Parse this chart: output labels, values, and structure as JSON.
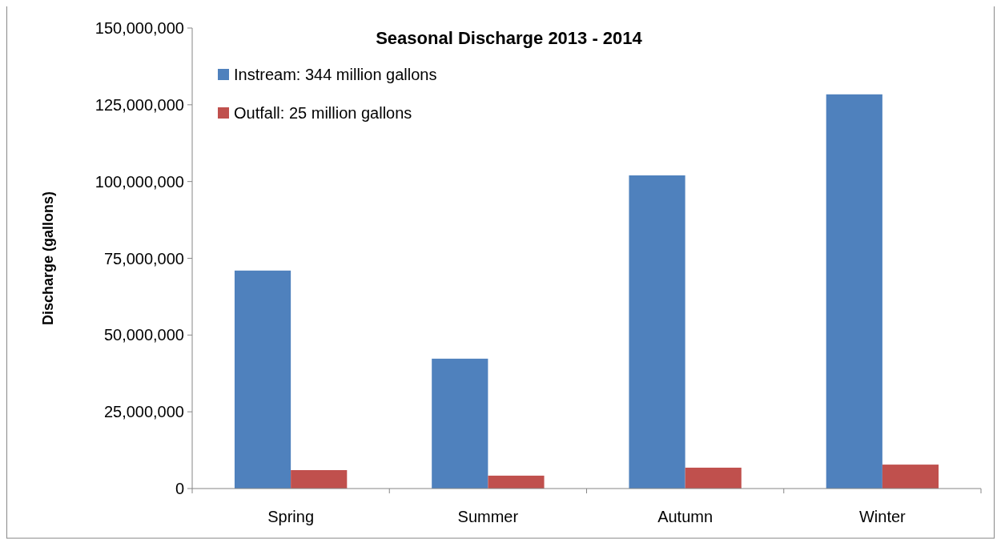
{
  "chart_data": {
    "type": "bar",
    "title": "Seasonal Discharge 2013 - 2014",
    "ylabel": "Discharge (gallons)",
    "categories": [
      "Spring",
      "Summer",
      "Autumn",
      "Winter"
    ],
    "series": [
      {
        "name": "Instream: 344 million gallons",
        "color": "#4f81bd",
        "values": [
          71000000,
          42300000,
          102000000,
          128400000
        ]
      },
      {
        "name": "Outfall: 25 million gallons",
        "color": "#c0504d",
        "values": [
          6000000,
          4200000,
          6800000,
          7800000
        ]
      }
    ],
    "ylim": [
      0,
      150000000
    ],
    "yticks": [
      {
        "value": 0,
        "label": "0"
      },
      {
        "value": 25000000,
        "label": "25,000,000"
      },
      {
        "value": 50000000,
        "label": "50,000,000"
      },
      {
        "value": 75000000,
        "label": "75,000,000"
      },
      {
        "value": 100000000,
        "label": "100,000,000"
      },
      {
        "value": 125000000,
        "label": "125,000,000"
      },
      {
        "value": 150000000,
        "label": "150,000,000"
      }
    ],
    "grid": false,
    "legend": "top left"
  }
}
